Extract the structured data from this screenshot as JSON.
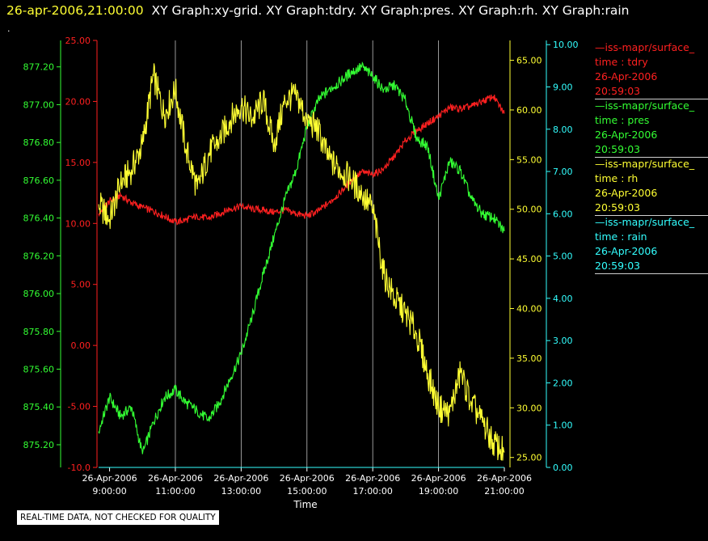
{
  "header": {
    "timestamp": "26-apr-2006,21:00:00",
    "graphs": "XY Graph:xy-grid.  XY Graph:tdry.  XY Graph:pres.  XY Graph:rh.  XY Graph:rain"
  },
  "dot": ".",
  "disclaimer": "REAL-TIME DATA, NOT CHECKED FOR QUALITY",
  "colors": {
    "tdry": "#ff2020",
    "pres": "#33ff33",
    "rh": "#ffff33",
    "rain": "#33ffff",
    "grid": "#ffffff"
  },
  "legend": [
    {
      "name": "—iss-mapr/surface_",
      "var": "time : tdry",
      "date": "26-Apr-2006",
      "time": "20:59:03",
      "color": "#ff2020"
    },
    {
      "name": "—iss-mapr/surface_",
      "var": "time : pres",
      "date": "26-Apr-2006",
      "time": "20:59:03",
      "color": "#33ff33"
    },
    {
      "name": "—iss-mapr/surface_",
      "var": "time : rh",
      "date": "26-Apr-2006",
      "time": "20:59:03",
      "color": "#ffff33"
    },
    {
      "name": "—iss-mapr/surface_",
      "var": "time : rain",
      "date": "26-Apr-2006",
      "time": "20:59:03",
      "color": "#33ffff"
    }
  ],
  "chart_data": {
    "type": "line",
    "xlabel": "Time",
    "xlim": [
      "2006-04-26T08:40",
      "2006-04-26T21:00"
    ],
    "x_ticks": [
      {
        "date": "26-Apr-2006",
        "time": "9:00:00"
      },
      {
        "date": "26-Apr-2006",
        "time": "11:00:00"
      },
      {
        "date": "26-Apr-2006",
        "time": "13:00:00"
      },
      {
        "date": "26-Apr-2006",
        "time": "15:00:00"
      },
      {
        "date": "26-Apr-2006",
        "time": "17:00:00"
      },
      {
        "date": "26-Apr-2006",
        "time": "19:00:00"
      },
      {
        "date": "26-Apr-2006",
        "time": "21:00:00"
      }
    ],
    "grid": "vertical",
    "axes": {
      "pres": {
        "side": "left-outer",
        "ylim": [
          875.08,
          877.34
        ],
        "ticks": [
          "875.20",
          "875.40",
          "875.60",
          "875.80",
          "876.00",
          "876.20",
          "876.40",
          "876.60",
          "876.80",
          "877.00",
          "877.20"
        ]
      },
      "tdry": {
        "side": "left-inner",
        "ylim": [
          -10.0,
          25.0
        ],
        "ticks": [
          "-10.0",
          "-5.00",
          "0.00",
          "5.00",
          "10.00",
          "15.00",
          "20.00",
          "25.00"
        ]
      },
      "rh": {
        "side": "right-inner",
        "ylim": [
          24.0,
          67.0
        ],
        "ticks": [
          "25.00",
          "30.00",
          "35.00",
          "40.00",
          "45.00",
          "50.00",
          "55.00",
          "60.00",
          "65.00"
        ]
      },
      "rain": {
        "side": "right-outer",
        "ylim": [
          0.0,
          10.1
        ],
        "ticks": [
          "0.00",
          "1.00",
          "2.00",
          "3.00",
          "4.00",
          "5.00",
          "6.00",
          "7.00",
          "8.00",
          "9.00",
          "10.00"
        ]
      }
    },
    "series": [
      {
        "name": "tdry",
        "x": [
          "08:40",
          "09:00",
          "09:20",
          "09:40",
          "10:00",
          "10:20",
          "10:40",
          "11:00",
          "11:20",
          "11:40",
          "12:00",
          "12:20",
          "12:40",
          "13:00",
          "13:20",
          "13:40",
          "14:00",
          "14:20",
          "14:40",
          "15:00",
          "15:20",
          "15:40",
          "16:00",
          "16:20",
          "16:40",
          "17:00",
          "17:20",
          "17:40",
          "18:00",
          "18:20",
          "18:40",
          "19:00",
          "19:20",
          "19:40",
          "20:00",
          "20:20",
          "20:40",
          "21:00"
        ],
        "values": [
          10.8,
          11.8,
          12.3,
          11.7,
          11.3,
          11.0,
          10.6,
          10.1,
          10.3,
          10.6,
          10.4,
          10.8,
          11.2,
          11.4,
          11.2,
          11.1,
          10.9,
          11.1,
          10.8,
          10.6,
          11.0,
          11.7,
          12.5,
          13.5,
          14.2,
          14.0,
          14.5,
          15.5,
          16.8,
          17.6,
          18.2,
          18.8,
          19.5,
          19.4,
          19.6,
          20.0,
          20.4,
          19.0
        ]
      },
      {
        "name": "pres",
        "x": [
          "08:40",
          "09:00",
          "09:20",
          "09:40",
          "10:00",
          "10:20",
          "10:40",
          "11:00",
          "11:20",
          "11:40",
          "12:00",
          "12:20",
          "12:40",
          "13:00",
          "13:20",
          "13:40",
          "14:00",
          "14:20",
          "14:40",
          "15:00",
          "15:20",
          "15:40",
          "16:00",
          "16:20",
          "16:40",
          "17:00",
          "17:20",
          "17:40",
          "18:00",
          "18:20",
          "18:40",
          "19:00",
          "19:20",
          "19:40",
          "20:00",
          "20:20",
          "20:40",
          "21:00"
        ],
        "values": [
          875.27,
          875.45,
          875.35,
          875.4,
          875.15,
          875.32,
          875.45,
          875.49,
          875.42,
          875.38,
          875.33,
          875.42,
          875.55,
          875.68,
          875.88,
          876.1,
          876.3,
          876.5,
          876.65,
          876.88,
          877.02,
          877.08,
          877.12,
          877.17,
          877.2,
          877.15,
          877.08,
          877.1,
          877.02,
          876.82,
          876.78,
          876.5,
          876.7,
          876.65,
          876.5,
          876.42,
          876.4,
          876.33
        ]
      },
      {
        "name": "rh",
        "x": [
          "08:40",
          "09:00",
          "09:20",
          "09:40",
          "10:00",
          "10:20",
          "10:40",
          "11:00",
          "11:20",
          "11:40",
          "12:00",
          "12:20",
          "12:40",
          "13:00",
          "13:20",
          "13:40",
          "14:00",
          "14:20",
          "14:40",
          "15:00",
          "15:20",
          "15:40",
          "16:00",
          "16:20",
          "16:40",
          "17:00",
          "17:20",
          "17:40",
          "18:00",
          "18:20",
          "18:40",
          "19:00",
          "19:20",
          "19:40",
          "20:00",
          "20:20",
          "20:40",
          "21:00"
        ],
        "values": [
          50.5,
          49.0,
          52.5,
          54.0,
          56.5,
          63.5,
          59.5,
          62.0,
          56.0,
          52.0,
          55.5,
          57.0,
          59.0,
          60.5,
          59.0,
          61.0,
          56.5,
          61.0,
          61.5,
          59.0,
          58.0,
          55.0,
          54.0,
          53.0,
          51.5,
          50.0,
          43.5,
          41.0,
          39.5,
          37.5,
          33.5,
          30.0,
          29.5,
          33.5,
          30.5,
          28.5,
          26.5,
          25.5
        ]
      },
      {
        "name": "rain",
        "x": [
          "08:40",
          "21:00"
        ],
        "values": [
          0.0,
          0.0
        ]
      }
    ]
  }
}
